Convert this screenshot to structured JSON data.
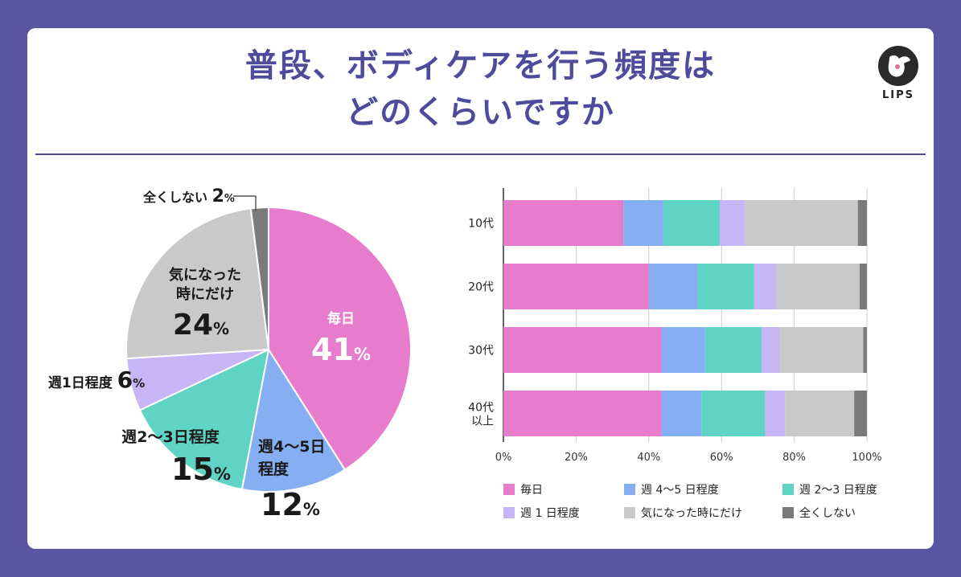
{
  "header": {
    "title_line1": "普段、ボディケアを行う頻度は",
    "title_line2": "どのくらいですか",
    "logo_text": "LIPS"
  },
  "colors": {
    "background": "#5a55a3",
    "title": "#4e4a9c",
    "daily": "#e87ccc",
    "w45": "#86aef2",
    "w23": "#5fd3c4",
    "w1": "#c7b6f5",
    "whenever": "#c9c9c9",
    "never": "#7b7b7b"
  },
  "chart_data": [
    {
      "type": "pie",
      "slices": [
        {
          "key": "daily",
          "label": "毎日",
          "value": 41,
          "display": "41"
        },
        {
          "key": "w45",
          "label": "週4〜5日程度",
          "value": 12,
          "display": "12"
        },
        {
          "key": "w23",
          "label": "週2〜3日程度",
          "value": 15,
          "display": "15"
        },
        {
          "key": "w1",
          "label": "週1日程度",
          "value": 6,
          "display": "6"
        },
        {
          "key": "whenever",
          "label": "気になった時にだけ",
          "value": 24,
          "display": "24"
        },
        {
          "key": "never",
          "label": "全くしない",
          "value": 2,
          "display": "2"
        }
      ],
      "percent_sign": "%"
    },
    {
      "type": "bar",
      "orientation": "horizontal",
      "stacked": true,
      "categories": [
        "10代",
        "20代",
        "30代",
        "40代\n以上"
      ],
      "series": [
        {
          "key": "daily",
          "name": "毎日",
          "values": [
            33,
            40,
            43.5,
            43.5
          ]
        },
        {
          "key": "w45",
          "name": "週 4〜5 日程度",
          "values": [
            11,
            13.5,
            12,
            11
          ]
        },
        {
          "key": "w23",
          "name": "週 2〜3 日程度",
          "values": [
            15.5,
            15.5,
            15.5,
            17.5
          ]
        },
        {
          "key": "w1",
          "name": "週 1 日程度",
          "values": [
            7,
            6,
            5,
            5.5
          ]
        },
        {
          "key": "whenever",
          "name": "気になった時にだけ",
          "values": [
            31,
            23,
            23,
            19
          ]
        },
        {
          "key": "never",
          "name": "全くしない",
          "values": [
            2.5,
            2,
            1,
            3.5
          ]
        }
      ],
      "xlim": [
        0,
        100
      ],
      "xticks": [
        "0%",
        "20%",
        "40%",
        "60%",
        "80%",
        "100%"
      ],
      "grid": true,
      "legend": "bottom"
    }
  ]
}
